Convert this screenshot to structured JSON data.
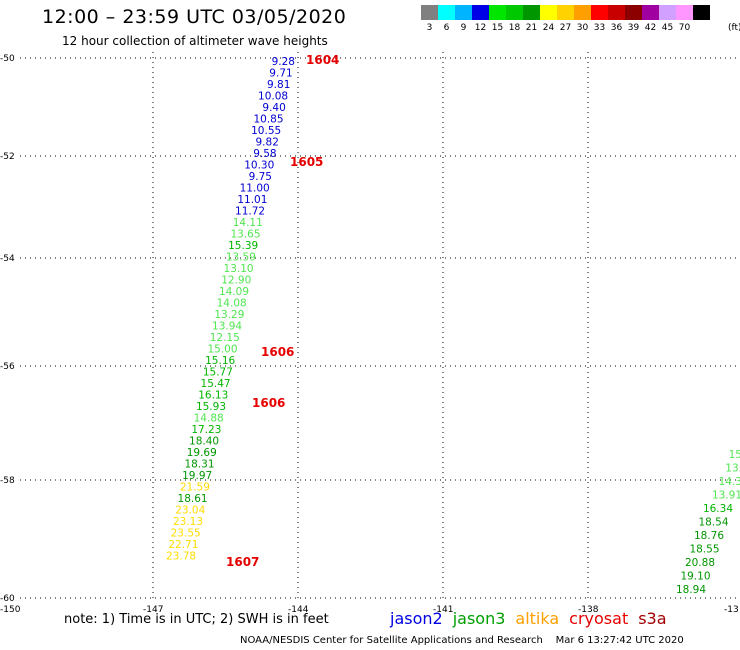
{
  "header": {
    "title": "12:00 – 23:59 UTC 03/05/2020",
    "subtitle": "12 hour collection of altimeter wave heights"
  },
  "scale": {
    "unit": "(ft)",
    "bins": [
      {
        "label": "3",
        "color": "#808080"
      },
      {
        "label": "6",
        "color": "#00ffff"
      },
      {
        "label": "9",
        "color": "#00b4ff"
      },
      {
        "label": "12",
        "color": "#0000e6"
      },
      {
        "label": "15",
        "color": "#00e600"
      },
      {
        "label": "18",
        "color": "#00c800"
      },
      {
        "label": "21",
        "color": "#009600"
      },
      {
        "label": "24",
        "color": "#ffff00"
      },
      {
        "label": "27",
        "color": "#ffd200"
      },
      {
        "label": "30",
        "color": "#ffa000"
      },
      {
        "label": "33",
        "color": "#ff0000"
      },
      {
        "label": "36",
        "color": "#c80000"
      },
      {
        "label": "39",
        "color": "#8c0000"
      },
      {
        "label": "42",
        "color": "#a000a0"
      },
      {
        "label": "45",
        "color": "#d2a0ff"
      },
      {
        "label": "70",
        "color": "#ff96ff"
      },
      {
        "label": "",
        "color": "#000000"
      }
    ]
  },
  "map": {
    "lat_labels": [
      "-50",
      "-52",
      "-54",
      "-56",
      "-58",
      "-60"
    ],
    "lon_labels": [
      "-150",
      "-147",
      "-144",
      "-141",
      "-138",
      "-13"
    ],
    "series_colors": {
      "blue": "#0000d2",
      "lgreen": "#50e650",
      "green": "#00b400",
      "dgreen": "#009600",
      "yellow": "#ffdc00",
      "red": "#e60000"
    },
    "track1": [
      {
        "v": "9.28",
        "c": "blue"
      },
      {
        "v": "9.71",
        "c": "blue"
      },
      {
        "v": "9.81",
        "c": "blue"
      },
      {
        "v": "10.08",
        "c": "blue"
      },
      {
        "v": "9.40",
        "c": "blue"
      },
      {
        "v": "10.85",
        "c": "blue"
      },
      {
        "v": "10.55",
        "c": "blue"
      },
      {
        "v": "9.82",
        "c": "blue"
      },
      {
        "v": "9.58",
        "c": "blue"
      },
      {
        "v": "10.30",
        "c": "blue"
      },
      {
        "v": "9.75",
        "c": "blue"
      },
      {
        "v": "11.00",
        "c": "blue"
      },
      {
        "v": "11.01",
        "c": "blue"
      },
      {
        "v": "11.72",
        "c": "blue"
      },
      {
        "v": "14.11",
        "c": "lgreen"
      },
      {
        "v": "13.65",
        "c": "lgreen"
      },
      {
        "v": "15.39",
        "c": "green"
      },
      {
        "v": "13.59",
        "c": "lgreen"
      },
      {
        "v": "13.10",
        "c": "lgreen"
      },
      {
        "v": "12.90",
        "c": "lgreen"
      },
      {
        "v": "14.09",
        "c": "lgreen"
      },
      {
        "v": "14.08",
        "c": "lgreen"
      },
      {
        "v": "13.29",
        "c": "lgreen"
      },
      {
        "v": "13.94",
        "c": "lgreen"
      },
      {
        "v": "12.15",
        "c": "lgreen"
      },
      {
        "v": "15.00",
        "c": "lgreen"
      },
      {
        "v": "15.16",
        "c": "green"
      },
      {
        "v": "15.77",
        "c": "green"
      },
      {
        "v": "15.47",
        "c": "green"
      },
      {
        "v": "16.13",
        "c": "green"
      },
      {
        "v": "15.93",
        "c": "green"
      },
      {
        "v": "14.88",
        "c": "lgreen"
      },
      {
        "v": "17.23",
        "c": "green"
      },
      {
        "v": "18.40",
        "c": "dgreen"
      },
      {
        "v": "19.69",
        "c": "dgreen"
      },
      {
        "v": "18.31",
        "c": "dgreen"
      },
      {
        "v": "19.97",
        "c": "dgreen"
      },
      {
        "v": "21.59",
        "c": "yellow"
      },
      {
        "v": "18.61",
        "c": "dgreen"
      },
      {
        "v": "23.04",
        "c": "yellow"
      },
      {
        "v": "23.13",
        "c": "yellow"
      },
      {
        "v": "23.55",
        "c": "yellow"
      },
      {
        "v": "22.71",
        "c": "yellow"
      },
      {
        "v": "23.78",
        "c": "yellow"
      }
    ],
    "time_labels": [
      "1604",
      "1605",
      "1606",
      "1606",
      "1607"
    ],
    "track2": [
      {
        "v": "15",
        "c": "lgreen"
      },
      {
        "v": "13.",
        "c": "lgreen"
      },
      {
        "v": "14.3",
        "c": "lgreen"
      },
      {
        "v": "13.91",
        "c": "lgreen"
      },
      {
        "v": "16.34",
        "c": "green"
      },
      {
        "v": "18.54",
        "c": "dgreen"
      },
      {
        "v": "18.76",
        "c": "dgreen"
      },
      {
        "v": "18.55",
        "c": "dgreen"
      },
      {
        "v": "20.88",
        "c": "dgreen"
      },
      {
        "v": "19.10",
        "c": "dgreen"
      },
      {
        "v": "18.94",
        "c": "dgreen"
      }
    ]
  },
  "footer": {
    "note": "note: 1) Time is in UTC; 2) SWH is in feet",
    "satellites": [
      {
        "name": "jason2",
        "color": "#0000e6"
      },
      {
        "name": "jason3",
        "color": "#00a000"
      },
      {
        "name": "altika",
        "color": "#ffa000"
      },
      {
        "name": "cryosat",
        "color": "#e60000"
      },
      {
        "name": "s3a",
        "color": "#a00000"
      }
    ],
    "credit": "NOAA/NESDIS Center for Satellite Applications and Research",
    "timestamp": "Mar  6 13:27:42 UTC 2020"
  }
}
